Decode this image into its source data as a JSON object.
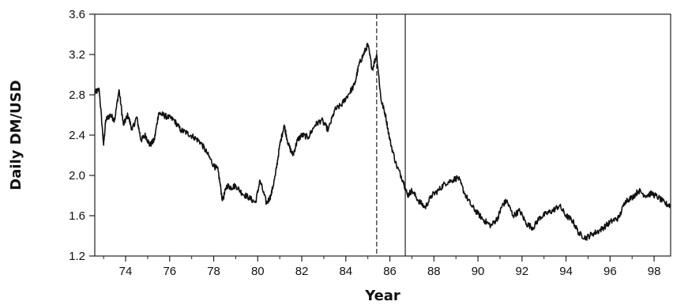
{
  "chart_data": {
    "type": "line",
    "title": "",
    "xlabel": "Year",
    "ylabel": "Daily DM/USD",
    "xlim": [
      1972.6,
      1998.75
    ],
    "ylim": [
      1.2,
      3.6
    ],
    "grid": false,
    "legend": "none",
    "yticks": [
      1.2,
      1.6,
      2.0,
      2.4,
      2.8,
      3.2,
      3.6
    ],
    "ytick_labels": [
      "1.2",
      "1.6",
      "2.0",
      "2.4",
      "2.8",
      "3.2",
      "3.6"
    ],
    "xticks": [
      1974,
      1976,
      1978,
      1980,
      1982,
      1984,
      1986,
      1988,
      1990,
      1992,
      1994,
      1996,
      1998
    ],
    "xtick_labels": [
      "74",
      "76",
      "78",
      "80",
      "82",
      "84",
      "86",
      "88",
      "90",
      "92",
      "94",
      "96",
      "98"
    ],
    "vertical_lines": [
      {
        "x": 1985.4,
        "style": "dashed"
      },
      {
        "x": 1986.7,
        "style": "solid"
      }
    ],
    "series": [
      {
        "color": "#111111",
        "x": [
          1972.6,
          1972.8,
          1973.0,
          1973.1,
          1973.3,
          1973.5,
          1973.7,
          1973.9,
          1974.1,
          1974.3,
          1974.5,
          1974.7,
          1974.9,
          1975.1,
          1975.3,
          1975.5,
          1975.7,
          1975.9,
          1976.2,
          1976.5,
          1976.8,
          1977.1,
          1977.4,
          1977.7,
          1978.0,
          1978.2,
          1978.4,
          1978.6,
          1978.8,
          1979.0,
          1979.3,
          1979.6,
          1979.9,
          1980.1,
          1980.4,
          1980.6,
          1980.8,
          1981.0,
          1981.2,
          1981.4,
          1981.6,
          1981.8,
          1982.0,
          1982.3,
          1982.6,
          1982.9,
          1983.2,
          1983.5,
          1983.8,
          1984.1,
          1984.4,
          1984.6,
          1984.8,
          1985.0,
          1985.2,
          1985.4,
          1985.6,
          1985.8,
          1986.0,
          1986.3,
          1986.6,
          1986.8,
          1987.0,
          1987.3,
          1987.6,
          1987.9,
          1988.2,
          1988.5,
          1988.8,
          1989.1,
          1989.4,
          1989.7,
          1990.0,
          1990.3,
          1990.6,
          1990.9,
          1991.1,
          1991.3,
          1991.6,
          1991.9,
          1992.2,
          1992.5,
          1992.8,
          1993.1,
          1993.4,
          1993.7,
          1994.0,
          1994.3,
          1994.6,
          1994.9,
          1995.2,
          1995.5,
          1995.8,
          1996.1,
          1996.4,
          1996.7,
          1997.0,
          1997.3,
          1997.6,
          1997.9,
          1998.2,
          1998.5,
          1998.75
        ],
        "y": [
          2.82,
          2.85,
          2.3,
          2.55,
          2.6,
          2.55,
          2.85,
          2.5,
          2.6,
          2.45,
          2.58,
          2.35,
          2.4,
          2.3,
          2.35,
          2.62,
          2.6,
          2.58,
          2.55,
          2.45,
          2.42,
          2.38,
          2.33,
          2.22,
          2.1,
          2.05,
          1.75,
          1.9,
          1.88,
          1.9,
          1.82,
          1.78,
          1.73,
          1.95,
          1.72,
          1.8,
          2.0,
          2.3,
          2.5,
          2.3,
          2.2,
          2.35,
          2.4,
          2.38,
          2.5,
          2.55,
          2.45,
          2.65,
          2.7,
          2.8,
          2.9,
          3.1,
          3.2,
          3.3,
          3.05,
          3.2,
          2.75,
          2.6,
          2.35,
          2.1,
          1.95,
          1.8,
          1.85,
          1.75,
          1.68,
          1.8,
          1.85,
          1.92,
          1.95,
          1.98,
          1.82,
          1.7,
          1.62,
          1.55,
          1.5,
          1.58,
          1.7,
          1.75,
          1.6,
          1.65,
          1.52,
          1.48,
          1.58,
          1.62,
          1.65,
          1.7,
          1.6,
          1.55,
          1.42,
          1.38,
          1.42,
          1.45,
          1.5,
          1.55,
          1.58,
          1.75,
          1.78,
          1.85,
          1.8,
          1.82,
          1.78,
          1.72,
          1.7
        ]
      }
    ]
  }
}
